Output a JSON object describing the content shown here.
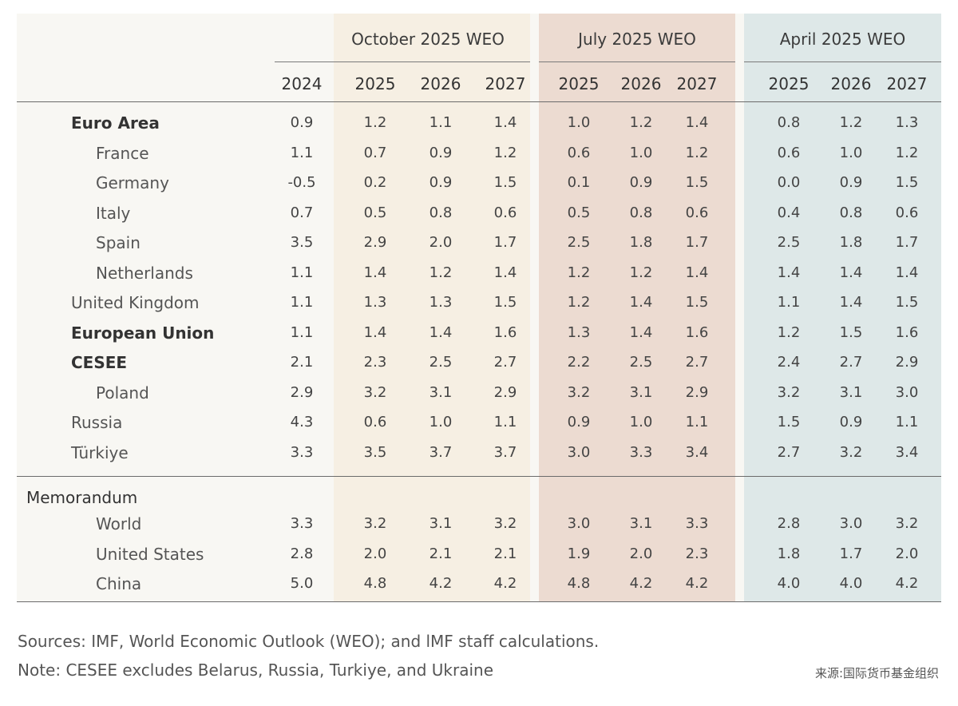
{
  "chart_data": {
    "type": "table",
    "group_headers": [
      "October 2025 WEO",
      "July 2025 WEO",
      "April 2025 WEO"
    ],
    "year_headers": [
      "2024",
      "2025",
      "2026",
      "2027",
      "2025",
      "2026",
      "2027",
      "2025",
      "2026",
      "2027"
    ],
    "rows": [
      {
        "label": "Euro Area",
        "bold": true,
        "indent": 1,
        "values": [
          "0.9",
          "1.2",
          "1.1",
          "1.4",
          "1.0",
          "1.2",
          "1.4",
          "0.8",
          "1.2",
          "1.3"
        ]
      },
      {
        "label": "France",
        "indent": 2,
        "values": [
          "1.1",
          "0.7",
          "0.9",
          "1.2",
          "0.6",
          "1.0",
          "1.2",
          "0.6",
          "1.0",
          "1.2"
        ]
      },
      {
        "label": "Germany",
        "indent": 2,
        "values": [
          "-0.5",
          "0.2",
          "0.9",
          "1.5",
          "0.1",
          "0.9",
          "1.5",
          "0.0",
          "0.9",
          "1.5"
        ]
      },
      {
        "label": "Italy",
        "indent": 2,
        "values": [
          "0.7",
          "0.5",
          "0.8",
          "0.6",
          "0.5",
          "0.8",
          "0.6",
          "0.4",
          "0.8",
          "0.6"
        ]
      },
      {
        "label": "Spain",
        "indent": 2,
        "values": [
          "3.5",
          "2.9",
          "2.0",
          "1.7",
          "2.5",
          "1.8",
          "1.7",
          "2.5",
          "1.8",
          "1.7"
        ]
      },
      {
        "label": "Netherlands",
        "indent": 2,
        "values": [
          "1.1",
          "1.4",
          "1.2",
          "1.4",
          "1.2",
          "1.2",
          "1.4",
          "1.4",
          "1.4",
          "1.4"
        ]
      },
      {
        "label": "United Kingdom",
        "indent": 1,
        "values": [
          "1.1",
          "1.3",
          "1.3",
          "1.5",
          "1.2",
          "1.4",
          "1.5",
          "1.1",
          "1.4",
          "1.5"
        ]
      },
      {
        "label": "European Union",
        "bold": true,
        "indent": 1,
        "values": [
          "1.1",
          "1.4",
          "1.4",
          "1.6",
          "1.3",
          "1.4",
          "1.6",
          "1.2",
          "1.5",
          "1.6"
        ]
      },
      {
        "label": "CESEE",
        "bold": true,
        "indent": 1,
        "values": [
          "2.1",
          "2.3",
          "2.5",
          "2.7",
          "2.2",
          "2.5",
          "2.7",
          "2.4",
          "2.7",
          "2.9"
        ]
      },
      {
        "label": "Poland",
        "indent": 2,
        "values": [
          "2.9",
          "3.2",
          "3.1",
          "2.9",
          "3.2",
          "3.1",
          "2.9",
          "3.2",
          "3.1",
          "3.0"
        ]
      },
      {
        "label": "Russia",
        "indent": 1,
        "values": [
          "4.3",
          "0.6",
          "1.0",
          "1.1",
          "0.9",
          "1.0",
          "1.1",
          "1.5",
          "0.9",
          "1.1"
        ]
      },
      {
        "label": "Türkiye",
        "indent": 1,
        "values": [
          "3.3",
          "3.5",
          "3.7",
          "3.7",
          "3.0",
          "3.3",
          "3.4",
          "2.7",
          "3.2",
          "3.4"
        ]
      }
    ],
    "memorandum": {
      "label": "Memorandum",
      "rows": [
        {
          "label": "World",
          "indent": 2,
          "values": [
            "3.3",
            "3.2",
            "3.1",
            "3.2",
            "3.0",
            "3.1",
            "3.3",
            "2.8",
            "3.0",
            "3.2"
          ]
        },
        {
          "label": "United States",
          "indent": 2,
          "values": [
            "2.8",
            "2.0",
            "2.1",
            "2.1",
            "1.9",
            "2.0",
            "2.3",
            "1.8",
            "1.7",
            "2.0"
          ]
        },
        {
          "label": "China",
          "indent": 2,
          "values": [
            "5.0",
            "4.8",
            "4.2",
            "4.2",
            "4.8",
            "4.2",
            "4.2",
            "4.0",
            "4.0",
            "4.2"
          ]
        }
      ]
    }
  },
  "footer": {
    "sources": "Sources: IMF, World Economic Outlook (WEO); and lMF staff calculations.",
    "note": "Note: CESEE excludes Belarus, Russia, Turkiye, and Ukraine",
    "credit": "来源:国际货币基金组织"
  },
  "colors": {
    "panel_bg": "#f8f7f3",
    "october_band": "#f6efe3",
    "july_band": "#ecdbd1",
    "april_band": "#dee8e8"
  }
}
